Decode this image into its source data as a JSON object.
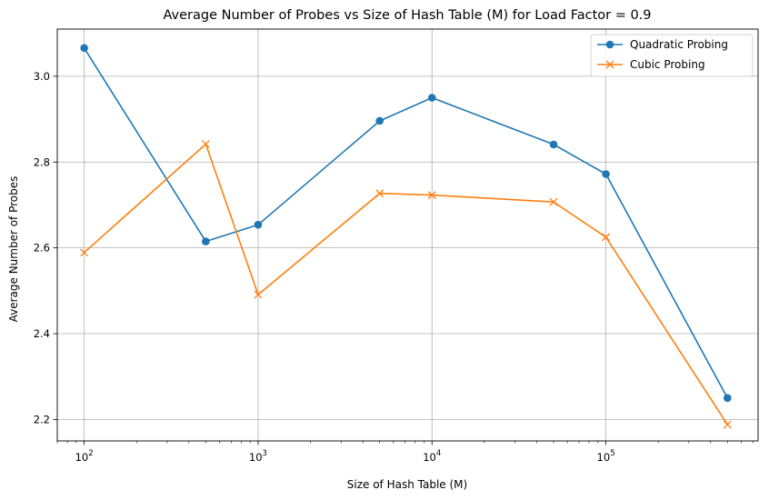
{
  "chart_data": {
    "type": "line",
    "title": "Average Number of Probes vs Size of Hash Table (M) for Load Factor = 0.9",
    "xlabel": "Size of Hash Table (M)",
    "ylabel": "Average Number of Probes",
    "xscale": "log",
    "xlim": [
      70,
      750000
    ],
    "ylim": [
      2.15,
      3.11
    ],
    "grid": true,
    "legend_position": "top-right",
    "x": [
      100,
      500,
      1000,
      5000,
      10000,
      50000,
      100000,
      500000
    ],
    "xticks": [
      {
        "value": 100,
        "base": "10",
        "exp": "2"
      },
      {
        "value": 1000,
        "base": "10",
        "exp": "3"
      },
      {
        "value": 10000,
        "base": "10",
        "exp": "4"
      },
      {
        "value": 100000,
        "base": "10",
        "exp": "5"
      }
    ],
    "yticks": [
      {
        "value": 2.2,
        "label": "2.2"
      },
      {
        "value": 2.4,
        "label": "2.4"
      },
      {
        "value": 2.6,
        "label": "2.6"
      },
      {
        "value": 2.8,
        "label": "2.8"
      },
      {
        "value": 3.0,
        "label": "3.0"
      }
    ],
    "series": [
      {
        "name": "Quadratic Probing",
        "marker": "circle",
        "color": "#1f77b4",
        "values": [
          3.066,
          2.615,
          2.654,
          2.896,
          2.95,
          2.841,
          2.772,
          2.25
        ]
      },
      {
        "name": "Cubic Probing",
        "marker": "x",
        "color": "#ff7f0e",
        "values": [
          2.589,
          2.842,
          2.491,
          2.727,
          2.723,
          2.707,
          2.625,
          2.188
        ]
      }
    ]
  }
}
